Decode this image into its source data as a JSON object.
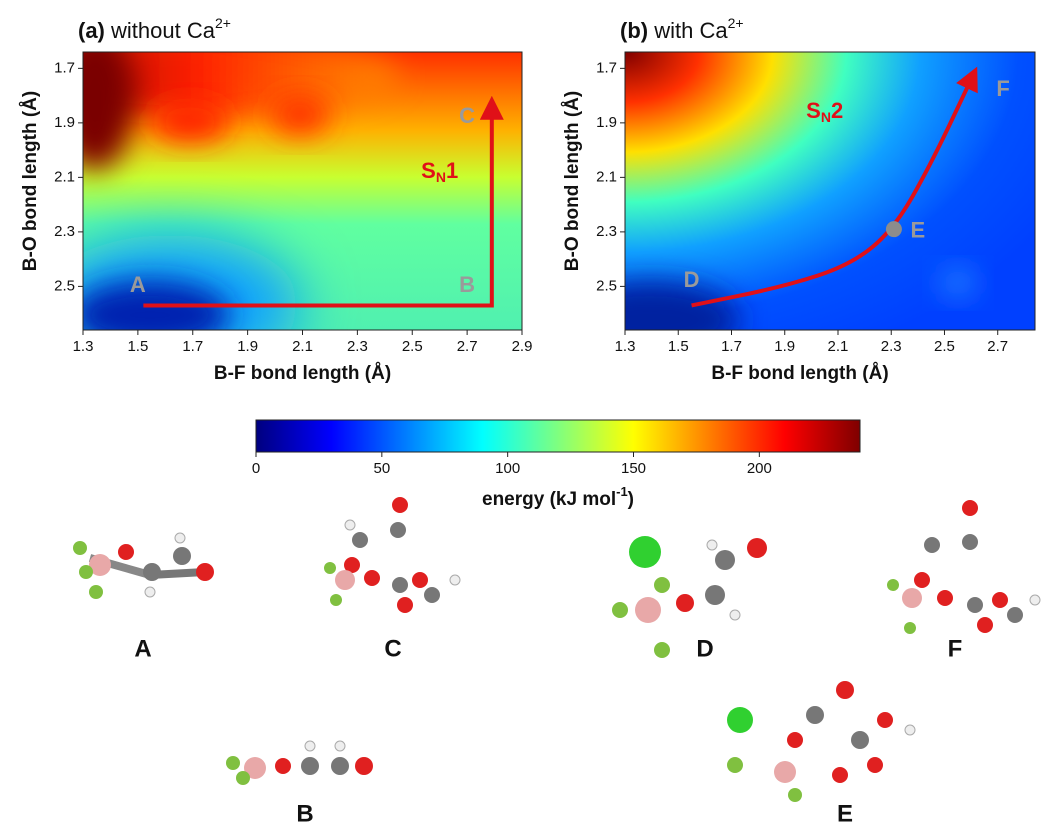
{
  "chart_data": [
    {
      "type": "heatmap",
      "panel": "(a)",
      "title": "without Ca",
      "title_sup": "2+",
      "x_label": "B-F bond length (Å)",
      "y_label": "B-O bond length (Å)",
      "xlim": [
        1.3,
        2.9
      ],
      "xticks": [
        1.3,
        1.5,
        1.7,
        1.9,
        2.1,
        2.3,
        2.5,
        2.7,
        2.9
      ],
      "ylim": [
        2.66,
        1.64
      ],
      "yticks": [
        1.7,
        1.9,
        2.1,
        2.3,
        2.5
      ],
      "points": [
        {
          "text": "A",
          "x": 1.5,
          "y": 2.5
        },
        {
          "text": "B",
          "x": 2.7,
          "y": 2.5
        },
        {
          "text": "C",
          "x": 2.7,
          "y": 1.88
        }
      ],
      "pathway": {
        "x": [
          1.52,
          2.79,
          2.79
        ],
        "y": [
          2.57,
          2.57,
          1.83
        ],
        "color": "#e01018"
      },
      "mechanism": {
        "text": "S",
        "sub": "N",
        "suffix": "1",
        "x": 2.6,
        "y": 2.08
      }
    },
    {
      "type": "heatmap",
      "panel": "(b)",
      "title": "with Ca",
      "title_sup": "2+",
      "x_label": "B-F bond length (Å)",
      "y_label": "B-O bond length (Å)",
      "xlim": [
        1.3,
        2.84
      ],
      "xticks": [
        1.3,
        1.5,
        1.7,
        1.9,
        2.1,
        2.3,
        2.5,
        2.7
      ],
      "ylim": [
        2.66,
        1.64
      ],
      "yticks": [
        1.7,
        1.9,
        2.1,
        2.3,
        2.5
      ],
      "points": [
        {
          "text": "D",
          "x": 1.55,
          "y": 2.48
        },
        {
          "text": "E",
          "x": 2.4,
          "y": 2.3
        },
        {
          "text": "F",
          "x": 2.72,
          "y": 1.78
        }
      ],
      "pathway": {
        "x": [
          1.55,
          1.9,
          2.15,
          2.31,
          2.45,
          2.61
        ],
        "y": [
          2.57,
          2.5,
          2.42,
          2.29,
          2.05,
          1.72
        ],
        "color": "#e01018"
      },
      "marker": {
        "x": 2.31,
        "y": 2.29,
        "color": "#8c8c8c"
      },
      "mechanism": {
        "text": "S",
        "sub": "N",
        "suffix": "2",
        "x": 2.05,
        "y": 1.86
      }
    },
    {
      "type": "colorbar",
      "label": "energy (kJ mol",
      "label_sup": "-1",
      "label_end": ")",
      "xlim": [
        0,
        240
      ],
      "xticks": [
        0,
        50,
        100,
        150,
        200
      ],
      "colors": [
        "#00007f",
        "#0000ff",
        "#007fff",
        "#00ffff",
        "#7fff7f",
        "#ffff00",
        "#ff7f00",
        "#ff0000",
        "#7f0000"
      ]
    }
  ],
  "structures": [
    {
      "label": "A"
    },
    {
      "label": "C"
    },
    {
      "label": "D"
    },
    {
      "label": "F"
    },
    {
      "label": "B"
    },
    {
      "label": "E"
    }
  ]
}
